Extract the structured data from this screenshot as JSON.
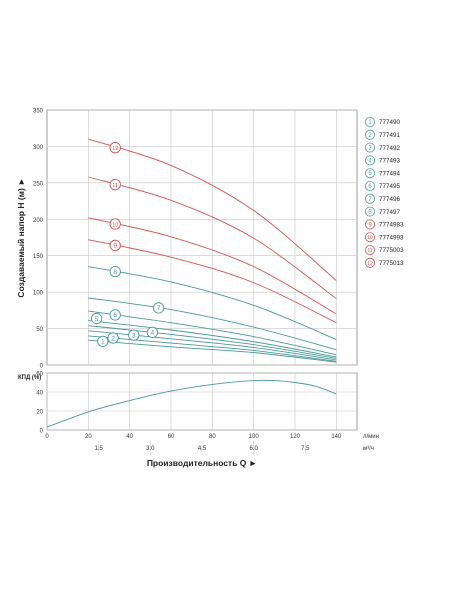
{
  "chart_data": [
    {
      "type": "line",
      "ylabel": "Создаваемый напор H (м) ►",
      "ylim": [
        0,
        350
      ],
      "y_ticks": [
        "0",
        "50",
        "100",
        "150",
        "200",
        "250",
        "300",
        "350"
      ],
      "x_ticks": [
        "20",
        "40",
        "60",
        "80",
        "100",
        "120",
        "140"
      ],
      "x_unit_label": "л/мин",
      "x": [
        20,
        60,
        100,
        140
      ],
      "grid": true,
      "legend_position": "right",
      "series": [
        {
          "name": "777490",
          "marker": "1",
          "color": "#4a9a9a",
          "values": [
            34,
            25,
            17,
            4
          ]
        },
        {
          "name": "777491",
          "marker": "2",
          "color": "#4a9a9a",
          "values": [
            40,
            30,
            20,
            5
          ]
        },
        {
          "name": "777492",
          "marker": "3",
          "color": "#4a9a9a",
          "values": [
            47,
            36,
            24,
            7
          ]
        },
        {
          "name": "777493",
          "marker": "4",
          "color": "#4a9a9a",
          "values": [
            54,
            42,
            28,
            9
          ]
        },
        {
          "name": "777494",
          "marker": "5",
          "color": "#4a9a9a",
          "values": [
            61,
            48,
            32,
            11
          ]
        },
        {
          "name": "777495",
          "marker": "6",
          "color": "#4a9a9a",
          "values": [
            74,
            58,
            39,
            14
          ]
        },
        {
          "name": "777496",
          "marker": "7",
          "color": "#4a9a9a",
          "values": [
            92,
            76,
            52,
            21
          ]
        },
        {
          "name": "777497",
          "marker": "8",
          "color": "#4a9a9a",
          "values": [
            135,
            114,
            82,
            35
          ]
        },
        {
          "name": "7774983",
          "marker": "9",
          "color": "#d9534f",
          "values": [
            172,
            148,
            113,
            58
          ]
        },
        {
          "name": "7774993",
          "marker": "10",
          "color": "#d9534f",
          "values": [
            202,
            176,
            135,
            70
          ]
        },
        {
          "name": "7775003",
          "marker": "11",
          "color": "#d9534f",
          "values": [
            258,
            226,
            174,
            91
          ]
        },
        {
          "name": "7775013",
          "marker": "12",
          "color": "#d9534f",
          "values": [
            310,
            274,
            212,
            116
          ]
        }
      ]
    },
    {
      "type": "line",
      "ylabel": "КПД (%)",
      "ylim": [
        0,
        60
      ],
      "y_ticks": [
        "0",
        "20",
        "40",
        "60"
      ],
      "x_ticks": [
        "0",
        "20",
        "40",
        "60",
        "80",
        "100",
        "120",
        "140"
      ],
      "x_unit_label": "л/мин",
      "x2_ticks": [
        "1.5",
        "3.0",
        "4.5",
        "6.0",
        "7.5"
      ],
      "x2_unit_label": "м³/ч",
      "xlabel": "Производительность Q ►",
      "grid": true,
      "series": [
        {
          "color": "#4a9a9a",
          "x": [
            0,
            20,
            40,
            60,
            80,
            100,
            110,
            120,
            130,
            140
          ],
          "values": [
            3,
            19,
            31,
            41,
            48,
            52,
            52,
            50,
            46,
            38
          ]
        }
      ]
    }
  ]
}
